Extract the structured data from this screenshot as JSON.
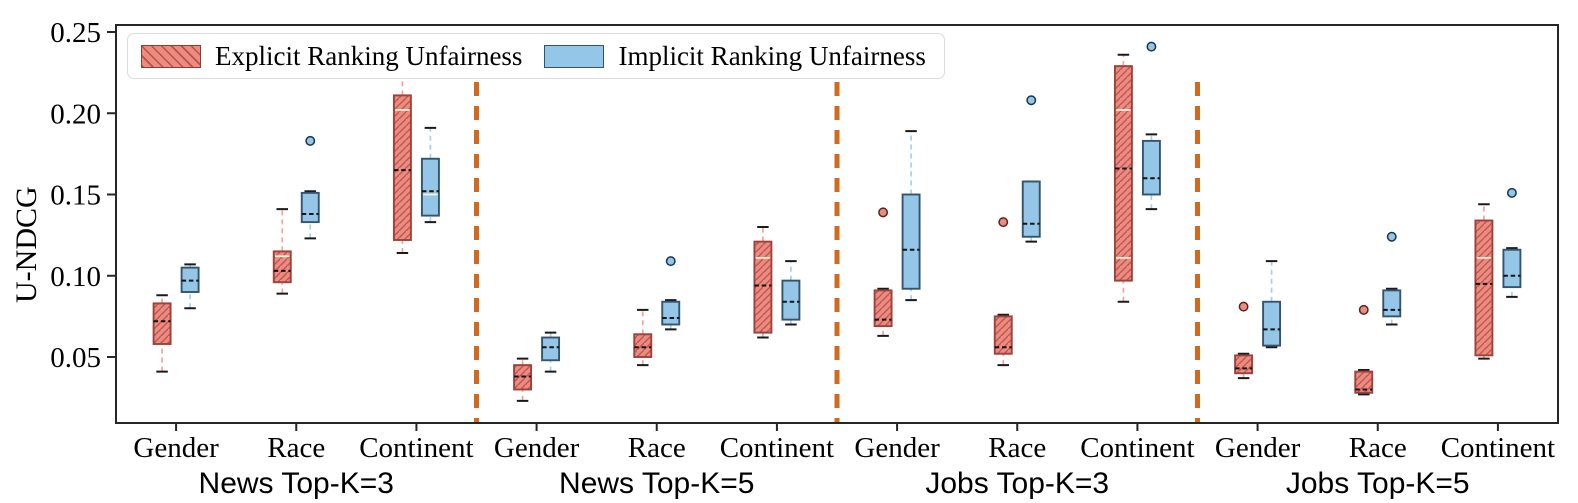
{
  "figure": {
    "ylabel": "U-NDCG",
    "legend": {
      "items": [
        {
          "label": "Explicit Ranking Unfairness",
          "swatch": "hatched-red"
        },
        {
          "label": "Implicit Ranking Unfairness",
          "swatch": "solid-blue"
        }
      ]
    },
    "colors": {
      "explicit_fill": "#ee8a80",
      "explicit_edge": "#9c423a",
      "explicit_whisker": "#f2a39b",
      "implicit_fill": "#94c6e7",
      "implicit_edge": "#35536f",
      "implicit_whisker": "#a6cfec",
      "separator": "#d2691e",
      "axis": "#262626",
      "median_dash": "#141414",
      "light_line": "#fbf0da"
    }
  },
  "chart_data": {
    "type": "boxplot",
    "title": "",
    "xlabel": "",
    "ylabel": "U-NDCG",
    "ylim": [
      0.009,
      0.2545
    ],
    "yticks": [
      0.25,
      0.2,
      0.15,
      0.1,
      0.05
    ],
    "ytick_labels": [
      "0.25",
      "0.20",
      "0.15",
      "0.10",
      "0.05"
    ],
    "grid": false,
    "legend_position": "upper-left",
    "groups": [
      "News Top-K=3",
      "News Top-K=5",
      "Jobs Top-K=3",
      "Jobs Top-K=5"
    ],
    "categories": [
      "Gender",
      "Race",
      "Continent"
    ],
    "category_slots": [
      "Gender",
      "Race",
      "Continent",
      "Gender",
      "Race",
      "Continent",
      "Gender",
      "Race",
      "Continent",
      "Gender",
      "Race",
      "Continent"
    ],
    "separators_between_groups": true,
    "series": [
      {
        "name": "Explicit Ranking Unfairness",
        "style": "hatched-red",
        "boxes": [
          {
            "group": "News Top-K=3",
            "category": "Gender",
            "whislo": 0.041,
            "q1": 0.058,
            "med": 0.072,
            "q3": 0.083,
            "whishi": 0.088,
            "outliers": [],
            "light_lines": []
          },
          {
            "group": "News Top-K=3",
            "category": "Race",
            "whislo": 0.089,
            "q1": 0.096,
            "med": 0.103,
            "q3": 0.115,
            "whishi": 0.141,
            "outliers": [],
            "light_lines": [
              0.112
            ]
          },
          {
            "group": "News Top-K=3",
            "category": "Continent",
            "whislo": 0.114,
            "q1": 0.122,
            "med": 0.165,
            "q3": 0.211,
            "whishi": 0.222,
            "outliers": [],
            "light_lines": [
              0.202
            ]
          },
          {
            "group": "News Top-K=5",
            "category": "Gender",
            "whislo": 0.023,
            "q1": 0.03,
            "med": 0.038,
            "q3": 0.045,
            "whishi": 0.049,
            "outliers": [],
            "light_lines": []
          },
          {
            "group": "News Top-K=5",
            "category": "Race",
            "whislo": 0.045,
            "q1": 0.05,
            "med": 0.056,
            "q3": 0.064,
            "whishi": 0.079,
            "outliers": [],
            "light_lines": []
          },
          {
            "group": "News Top-K=5",
            "category": "Continent",
            "whislo": 0.062,
            "q1": 0.065,
            "med": 0.094,
            "q3": 0.121,
            "whishi": 0.13,
            "outliers": [],
            "light_lines": [
              0.111
            ]
          },
          {
            "group": "Jobs Top-K=3",
            "category": "Gender",
            "whislo": 0.063,
            "q1": 0.069,
            "med": 0.073,
            "q3": 0.091,
            "whishi": 0.092,
            "outliers": [
              0.139
            ],
            "light_lines": []
          },
          {
            "group": "Jobs Top-K=3",
            "category": "Race",
            "whislo": 0.045,
            "q1": 0.052,
            "med": 0.056,
            "q3": 0.075,
            "whishi": 0.076,
            "outliers": [
              0.133
            ],
            "light_lines": []
          },
          {
            "group": "Jobs Top-K=3",
            "category": "Continent",
            "whislo": 0.084,
            "q1": 0.097,
            "med": 0.166,
            "q3": 0.229,
            "whishi": 0.236,
            "outliers": [],
            "light_lines": [
              0.202,
              0.111
            ]
          },
          {
            "group": "Jobs Top-K=5",
            "category": "Gender",
            "whislo": 0.037,
            "q1": 0.04,
            "med": 0.043,
            "q3": 0.051,
            "whishi": 0.052,
            "outliers": [
              0.081
            ],
            "light_lines": []
          },
          {
            "group": "Jobs Top-K=5",
            "category": "Race",
            "whislo": 0.027,
            "q1": 0.028,
            "med": 0.03,
            "q3": 0.041,
            "whishi": 0.042,
            "outliers": [
              0.079
            ],
            "light_lines": []
          },
          {
            "group": "Jobs Top-K=5",
            "category": "Continent",
            "whislo": 0.049,
            "q1": 0.051,
            "med": 0.095,
            "q3": 0.134,
            "whishi": 0.144,
            "outliers": [],
            "light_lines": [
              0.111
            ]
          }
        ]
      },
      {
        "name": "Implicit Ranking Unfairness",
        "style": "solid-blue",
        "boxes": [
          {
            "group": "News Top-K=3",
            "category": "Gender",
            "whislo": 0.08,
            "q1": 0.09,
            "med": 0.097,
            "q3": 0.105,
            "whishi": 0.107,
            "outliers": [],
            "light_lines": []
          },
          {
            "group": "News Top-K=3",
            "category": "Race",
            "whislo": 0.123,
            "q1": 0.133,
            "med": 0.138,
            "q3": 0.151,
            "whishi": 0.152,
            "outliers": [
              0.183
            ],
            "light_lines": []
          },
          {
            "group": "News Top-K=3",
            "category": "Continent",
            "whislo": 0.133,
            "q1": 0.137,
            "med": 0.152,
            "q3": 0.172,
            "whishi": 0.191,
            "outliers": [],
            "light_lines": [
              0.15
            ]
          },
          {
            "group": "News Top-K=5",
            "category": "Gender",
            "whislo": 0.041,
            "q1": 0.048,
            "med": 0.056,
            "q3": 0.062,
            "whishi": 0.065,
            "outliers": [],
            "light_lines": []
          },
          {
            "group": "News Top-K=5",
            "category": "Race",
            "whislo": 0.067,
            "q1": 0.07,
            "med": 0.074,
            "q3": 0.084,
            "whishi": 0.085,
            "outliers": [
              0.109
            ],
            "light_lines": []
          },
          {
            "group": "News Top-K=5",
            "category": "Continent",
            "whislo": 0.07,
            "q1": 0.073,
            "med": 0.084,
            "q3": 0.097,
            "whishi": 0.109,
            "outliers": [],
            "light_lines": []
          },
          {
            "group": "Jobs Top-K=3",
            "category": "Gender",
            "whislo": 0.085,
            "q1": 0.092,
            "med": 0.116,
            "q3": 0.15,
            "whishi": 0.189,
            "outliers": [],
            "light_lines": []
          },
          {
            "group": "Jobs Top-K=3",
            "category": "Race",
            "whislo": 0.121,
            "q1": 0.124,
            "med": 0.132,
            "q3": 0.158,
            "whishi": 0.158,
            "outliers": [
              0.208
            ],
            "light_lines": []
          },
          {
            "group": "Jobs Top-K=3",
            "category": "Continent",
            "whislo": 0.141,
            "q1": 0.15,
            "med": 0.16,
            "q3": 0.183,
            "whishi": 0.187,
            "outliers": [
              0.241
            ],
            "light_lines": []
          },
          {
            "group": "Jobs Top-K=5",
            "category": "Gender",
            "whislo": 0.056,
            "q1": 0.057,
            "med": 0.067,
            "q3": 0.084,
            "whishi": 0.109,
            "outliers": [],
            "light_lines": []
          },
          {
            "group": "Jobs Top-K=5",
            "category": "Race",
            "whislo": 0.07,
            "q1": 0.075,
            "med": 0.079,
            "q3": 0.091,
            "whishi": 0.092,
            "outliers": [
              0.124
            ],
            "light_lines": []
          },
          {
            "group": "Jobs Top-K=5",
            "category": "Continent",
            "whislo": 0.087,
            "q1": 0.093,
            "med": 0.1,
            "q3": 0.116,
            "whishi": 0.117,
            "outliers": [
              0.151
            ],
            "light_lines": []
          }
        ]
      }
    ]
  }
}
